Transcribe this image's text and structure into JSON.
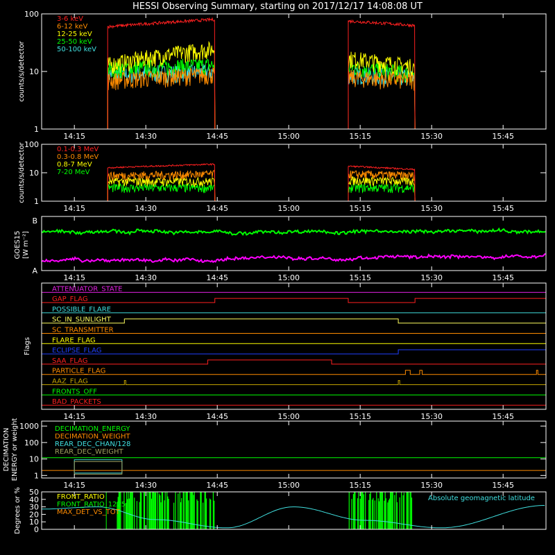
{
  "title": "HESSI Observing Summary, starting on 2017/12/17 14:08:08 UT",
  "time_ticks": [
    "14:15",
    "14:30",
    "14:45",
    "15:00",
    "15:15",
    "15:30",
    "15:45"
  ],
  "time_tick_minutes": [
    15,
    30,
    45,
    60,
    75,
    90,
    105
  ],
  "time_range_minutes": [
    8.13,
    114
  ],
  "colors": {
    "red": "#ff2020",
    "orange": "#ff8c00",
    "yellow": "#ffff00",
    "green": "#00ff00",
    "cyan": "#40e0e0",
    "magenta": "#ff00ff",
    "blue": "#2040ff",
    "white": "#ffffff",
    "olive": "#c0a000"
  },
  "chart_data": [
    {
      "type": "line",
      "panel": "lo-energy",
      "ylabel": "counts/s/detector",
      "yscale": "log",
      "ylim": [
        1,
        100
      ],
      "ytick_labels": [
        "1",
        "10",
        "100"
      ],
      "ytick_values": [
        1,
        10,
        100
      ],
      "observing_intervals_minutes": [
        [
          22,
          44.5
        ],
        [
          72.5,
          86.5
        ]
      ],
      "series": [
        {
          "name": "3-6 keV",
          "color": "#ff2020",
          "levels": [
            [
              22,
              60
            ],
            [
              44.5,
              80
            ],
            [
              72.5,
              75
            ],
            [
              86.5,
              63
            ]
          ]
        },
        {
          "name": "6-12 keV",
          "color": "#ff8c00",
          "levels": [
            [
              22,
              7
            ],
            [
              44.5,
              9
            ],
            [
              72.5,
              8
            ],
            [
              86.5,
              7
            ]
          ]
        },
        {
          "name": "12-25 keV",
          "color": "#ffff00",
          "levels": [
            [
              22,
              13
            ],
            [
              44.5,
              25
            ],
            [
              72.5,
              17
            ],
            [
              86.5,
              12
            ]
          ]
        },
        {
          "name": "25-50 keV",
          "color": "#00ff00",
          "levels": [
            [
              22,
              11
            ],
            [
              44.5,
              13
            ],
            [
              72.5,
              12
            ],
            [
              86.5,
              9
            ]
          ]
        },
        {
          "name": "50-100 keV",
          "color": "#40e0e0",
          "levels": [
            [
              22,
              9
            ],
            [
              44.5,
              10
            ],
            [
              72.5,
              9
            ],
            [
              86.5,
              8
            ]
          ]
        }
      ]
    },
    {
      "type": "line",
      "panel": "hi-energy",
      "ylabel": "counts/s/detector",
      "yscale": "log",
      "ylim": [
        1,
        100
      ],
      "ytick_labels": [
        "1",
        "10",
        "100"
      ],
      "ytick_values": [
        1,
        10,
        100
      ],
      "observing_intervals_minutes": [
        [
          22,
          44.5
        ],
        [
          72.5,
          86.5
        ]
      ],
      "series": [
        {
          "name": "0.1-0.3 MeV",
          "color": "#ff2020",
          "levels": [
            [
              22,
              15
            ],
            [
              44.5,
              20
            ],
            [
              72.5,
              17
            ],
            [
              86.5,
              13
            ]
          ]
        },
        {
          "name": "0.3-0.8 MeV",
          "color": "#ff8c00",
          "levels": [
            [
              22,
              8
            ],
            [
              44.5,
              9
            ],
            [
              72.5,
              9
            ],
            [
              86.5,
              8
            ]
          ]
        },
        {
          "name": "0.8-7 MeV",
          "color": "#ffff00",
          "levels": [
            [
              22,
              5
            ],
            [
              44.5,
              5
            ],
            [
              72.5,
              5.5
            ],
            [
              86.5,
              5
            ]
          ]
        },
        {
          "name": "7-20 MeV",
          "color": "#00ff00",
          "levels": [
            [
              22,
              3
            ],
            [
              44.5,
              3
            ],
            [
              72.5,
              3
            ],
            [
              86.5,
              3
            ]
          ]
        }
      ]
    },
    {
      "type": "line",
      "panel": "goes",
      "ylabel": "GOES15",
      "yunit": "[W m⁻²]",
      "ytick_labels": [
        "A",
        "B"
      ],
      "series": [
        {
          "name": "GOES long",
          "color": "#00ff00",
          "level": 0.72
        },
        {
          "name": "GOES short",
          "color": "#ff00ff",
          "level": 0.18
        }
      ]
    },
    {
      "type": "table",
      "panel": "flags",
      "ylabel": "Flags",
      "flags": [
        {
          "name": "ATTENUATOR_STATE",
          "color": "#e020e0",
          "changes": []
        },
        {
          "name": "GAP_FLAG",
          "color": "#ff2020",
          "changes": [
            [
              44.5,
              1
            ],
            [
              72.5,
              0
            ],
            [
              86.5,
              1
            ]
          ]
        },
        {
          "name": "POSSIBLE_FLARE",
          "color": "#40e0e0",
          "changes": []
        },
        {
          "name": "SC_IN_SUNLIGHT",
          "color": "#ffff60",
          "changes": [
            [
              25.5,
              1
            ],
            [
              83,
              0
            ]
          ]
        },
        {
          "name": "SC_TRANSMITTER",
          "color": "#ff8c00",
          "changes": []
        },
        {
          "name": "FLARE_FLAG",
          "color": "#ffff00",
          "changes": []
        },
        {
          "name": "ECLIPSE_FLAG",
          "color": "#2040ff",
          "changes": [
            [
              25.5,
              0
            ],
            [
              83,
              1
            ]
          ]
        },
        {
          "name": "SAA_FLAG",
          "color": "#ff2020",
          "changes": [
            [
              43,
              1
            ],
            [
              69,
              0
            ]
          ]
        },
        {
          "name": "PARTICLE_FLAG",
          "color": "#ff8c00",
          "changes": [
            [
              84.5,
              1
            ],
            [
              85.5,
              0
            ],
            [
              87.5,
              1
            ],
            [
              88,
              0
            ],
            [
              112,
              1
            ],
            [
              112.3,
              0
            ]
          ]
        },
        {
          "name": "AAZ_FLAG",
          "color": "#c0a000",
          "changes": [
            [
              25.5,
              1
            ],
            [
              25.8,
              0
            ],
            [
              83,
              1
            ],
            [
              83.3,
              0
            ]
          ]
        },
        {
          "name": "FRONTS_OFF",
          "color": "#00ff00",
          "changes": []
        },
        {
          "name": "BAD_PACKETS",
          "color": "#ff2020",
          "changes": []
        }
      ]
    },
    {
      "type": "line",
      "panel": "decimation",
      "ylabel": "DECIMATION ENERGY or weight",
      "yscale": "log",
      "ylim": [
        0.7,
        2000
      ],
      "ytick_labels": [
        "1",
        "10",
        "100",
        "1000"
      ],
      "ytick_values": [
        1,
        10,
        100,
        1000
      ],
      "series": [
        {
          "name": "DECIMATION_ENERGY",
          "color": "#00ff00",
          "level": 12
        },
        {
          "name": "DECIMATION_WEIGHT",
          "color": "#ff8c00",
          "level": 2
        },
        {
          "name": "REAR_DEC_CHAN/128",
          "color": "#40e0e0",
          "level": null
        },
        {
          "name": "REAR_DEC_WEIGHT",
          "color": "#a0a060",
          "level": null
        }
      ],
      "boxes_minutes": [
        [
          15,
          25
        ],
        [
          15,
          25
        ]
      ]
    },
    {
      "type": "line",
      "panel": "ratios",
      "ylabel": "Degrees or %",
      "ylim": [
        0,
        50
      ],
      "ytick_labels": [
        "0",
        "10",
        "20",
        "30",
        "40",
        "50"
      ],
      "ytick_values": [
        0,
        10,
        20,
        30,
        40,
        50
      ],
      "series": [
        {
          "name": "FRONT_RATIO",
          "color": "#ffff00"
        },
        {
          "name": "FRONT_RATIO_1225",
          "color": "#00ff00"
        },
        {
          "name": "MAX_DET_VS_TOT",
          "color": "#ff8c00"
        },
        {
          "name": "Absolute geomagnetic latitude",
          "color": "#40e0e0",
          "x": [
            8,
            20,
            32,
            47,
            61,
            76,
            92,
            114
          ],
          "y": [
            27,
            30,
            13,
            2,
            30,
            12,
            2,
            32
          ]
        }
      ],
      "green_bursts_minutes": [
        [
          24,
          44.5
        ],
        [
          72.5,
          86.5
        ]
      ]
    }
  ]
}
